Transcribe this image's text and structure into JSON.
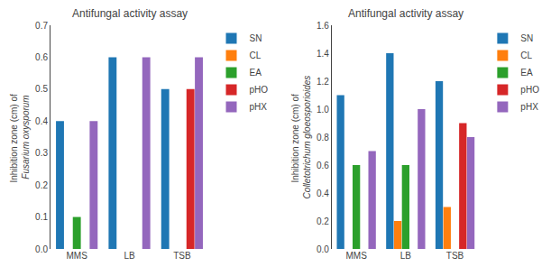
{
  "chart_data": [
    {
      "type": "bar",
      "title": "Antifungal activity assay",
      "ylabel": "Inhibition zone (cm) of \nFusarium oxysporum",
      "categories": [
        "MMS",
        "LB",
        "TSB"
      ],
      "series": [
        {
          "name": "SN",
          "values": [
            0.4,
            0.6,
            0.5
          ]
        },
        {
          "name": "CL",
          "values": [
            0.0,
            0.0,
            0.0
          ]
        },
        {
          "name": "EA",
          "values": [
            0.1,
            0.0,
            0.0
          ]
        },
        {
          "name": "pHO",
          "values": [
            0.0,
            0.0,
            0.5
          ]
        },
        {
          "name": "pHX",
          "values": [
            0.4,
            0.6,
            0.6
          ]
        }
      ],
      "ylim": [
        0,
        0.7
      ],
      "yticks": [
        {
          "value": 0.0,
          "label": "0.0"
        },
        0.1,
        0.2,
        0.3,
        0.4,
        0.5,
        0.6,
        0.7
      ],
      "grid": false,
      "legend": "upper right"
    },
    {
      "type": "bar",
      "title": "Antifungal activity assay",
      "ylabel": "Inhibition zone (cm) of \nColletotrichum gloeosporioides",
      "categories": [
        "MMS",
        "LB",
        "TSB"
      ],
      "series": [
        {
          "name": "SN",
          "values": [
            1.1,
            1.4,
            1.2
          ]
        },
        {
          "name": "CL",
          "values": [
            0.0,
            0.2,
            0.3
          ]
        },
        {
          "name": "EA",
          "values": [
            0.6,
            0.6,
            0.0
          ]
        },
        {
          "name": "pHO",
          "values": [
            0.0,
            0.0,
            0.9
          ]
        },
        {
          "name": "pHX",
          "values": [
            0.7,
            1.0,
            0.8
          ]
        }
      ],
      "ylim": [
        0,
        1.6
      ],
      "yticks": [
        {
          "value": 0,
          "label": "0.0"
        },
        0.2,
        0.4,
        0.6,
        0.8,
        {
          "value": 1.0,
          "label": "1.0"
        },
        1.2,
        1.4,
        1.6
      ],
      "grid": false,
      "legend": "upper right"
    }
  ]
}
